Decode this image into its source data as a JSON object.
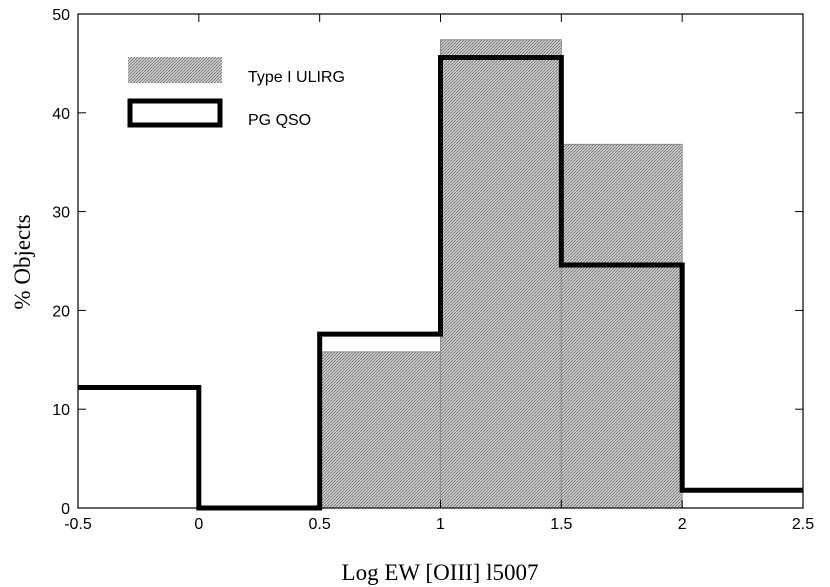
{
  "chart_data": {
    "type": "bar",
    "xlabel": "Log EW [OIII] l5007",
    "ylabel": "% Objects",
    "xlim": [
      -0.5,
      2.5
    ],
    "ylim": [
      0,
      50
    ],
    "xticks": [
      "-0.5",
      "0",
      "0.5",
      "1",
      "1.5",
      "2",
      "2.5"
    ],
    "yticks": [
      "0",
      "10",
      "20",
      "30",
      "40",
      "50"
    ],
    "bin_edges": [
      -0.5,
      0,
      0.5,
      1,
      1.5,
      2,
      2.5
    ],
    "legend_position": "top-left",
    "series": [
      {
        "name": "Type I ULIRG",
        "style": "shaded-fill",
        "color": "#9a9a9a",
        "values": [
          0,
          0,
          15.8,
          47.4,
          36.8,
          0
        ]
      },
      {
        "name": "PG QSO",
        "style": "thick-outline",
        "color": "#000000",
        "values": [
          12.2,
          0,
          17.6,
          45.6,
          24.6,
          1.8
        ]
      }
    ]
  }
}
